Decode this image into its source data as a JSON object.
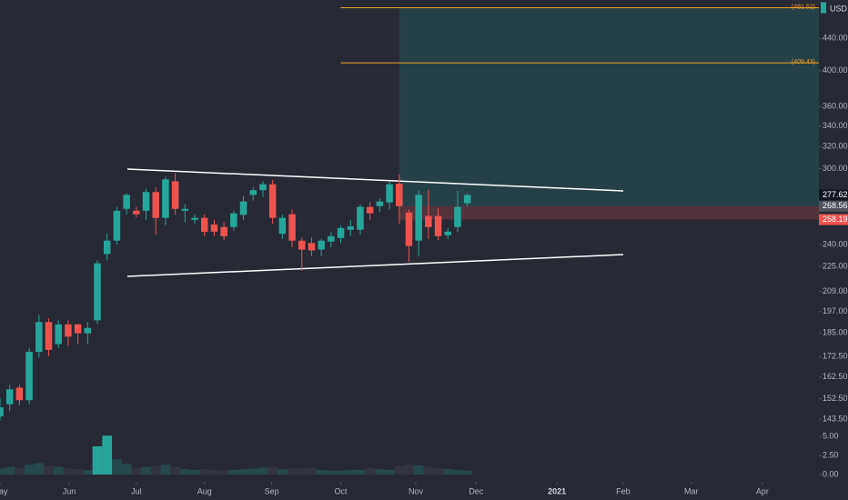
{
  "chart_data": {
    "type": "candlestick",
    "currency": "USD",
    "x": [
      0,
      1,
      2,
      3,
      4,
      5,
      6,
      7,
      8,
      9,
      10,
      11,
      12,
      13,
      14,
      15,
      16,
      17,
      18,
      19,
      20,
      21,
      22,
      23,
      24,
      25,
      26,
      27,
      28,
      29,
      30,
      31,
      32,
      33,
      34,
      35,
      36,
      37,
      38,
      39,
      40,
      41,
      42,
      43,
      44,
      45,
      46,
      47,
      48
    ],
    "open": [
      144.7,
      150,
      157.5,
      151.8,
      175,
      191,
      179,
      189.7,
      189.7,
      184.8,
      192,
      233.3,
      242.7,
      266.5,
      265,
      265,
      280,
      259.5,
      289,
      265,
      258,
      259.5,
      254.5,
      252.6,
      252.6,
      261.8,
      277.6,
      281.5,
      286.5,
      247.6,
      262.3,
      242.7,
      241,
      236.4,
      242,
      244.6,
      250.6,
      250.6,
      268,
      268.6,
      271.6,
      287,
      263.7,
      242.7,
      261,
      261,
      246.6,
      252.6,
      270.9
    ],
    "high": [
      152.6,
      158.7,
      159,
      177,
      195,
      193,
      192,
      192,
      190,
      191,
      229,
      248,
      268,
      279,
      268,
      283,
      284,
      293,
      296,
      270,
      262,
      262,
      258,
      256,
      265,
      277,
      284,
      289,
      290,
      262,
      266,
      245,
      245,
      244,
      249,
      254,
      258,
      270,
      272,
      275,
      289,
      295,
      266,
      281,
      282,
      267,
      252,
      281,
      279
    ],
    "low": [
      143,
      147,
      149.5,
      150,
      172,
      173,
      177,
      178,
      179,
      179,
      190,
      229,
      240,
      262,
      260,
      258,
      247,
      254,
      262,
      256,
      255,
      246,
      246,
      243,
      250,
      258,
      273,
      276,
      255,
      244,
      238,
      222,
      232,
      232,
      238,
      241,
      246,
      247,
      258,
      264,
      266,
      255,
      228,
      232,
      244,
      243,
      244,
      249,
      268
    ],
    "close": [
      148.6,
      156.7,
      151.8,
      175,
      191,
      176,
      189.7,
      183,
      184.8,
      187.7,
      227,
      242.7,
      265,
      277.6,
      262.3,
      280,
      259.5,
      290.6,
      266.5,
      266.5,
      259.5,
      249,
      249.2,
      245.9,
      263,
      272.3,
      281.5,
      286.5,
      259.5,
      259.5,
      242.7,
      236.4,
      235.8,
      242.7,
      245.9,
      251.9,
      253,
      268,
      263,
      272.3,
      286.5,
      268.6,
      238.9,
      277.6,
      252.6,
      245.9,
      249.2,
      268,
      277.6
    ],
    "volume": [
      0.8,
      1.0,
      0.9,
      1.3,
      1.5,
      1.2,
      1.0,
      0.8,
      0.7,
      0.6,
      3.7,
      5.1,
      2.0,
      1.4,
      0.9,
      1.0,
      1.1,
      1.3,
      1.0,
      0.7,
      0.6,
      0.7,
      0.6,
      0.5,
      0.6,
      0.7,
      0.8,
      0.9,
      1.0,
      0.7,
      0.8,
      0.8,
      0.9,
      0.6,
      0.5,
      0.5,
      0.6,
      0.6,
      0.9,
      0.7,
      0.6,
      1.1,
      1.3,
      1.2,
      1.0,
      0.8,
      0.7,
      0.6,
      0.5
    ],
    "up_color": "#26a69a",
    "down_color": "#ef5350",
    "log_scale": true,
    "xlim": [
      0,
      84.1
    ],
    "xticks": [
      {
        "value": 0,
        "label": "May"
      },
      {
        "value": 7.1,
        "label": "Jun"
      },
      {
        "value": 14,
        "label": "Jul"
      },
      {
        "value": 21,
        "label": "Aug"
      },
      {
        "value": 27.9,
        "label": "Sep"
      },
      {
        "value": 35,
        "label": "Oct"
      },
      {
        "value": 42.7,
        "label": "Nov"
      },
      {
        "value": 48.9,
        "label": "Dec"
      },
      {
        "value": 57.2,
        "label": "2021"
      },
      {
        "value": 64,
        "label": "Feb"
      },
      {
        "value": 71,
        "label": "Mar"
      },
      {
        "value": 78.3,
        "label": "Apr"
      }
    ],
    "ylim": [
      138.3,
      492.6
    ],
    "yticks": [
      {
        "value": 440,
        "label": "440.00"
      },
      {
        "value": 400,
        "label": "400.00"
      },
      {
        "value": 360,
        "label": "360.00"
      },
      {
        "value": 340,
        "label": "340.00"
      },
      {
        "value": 320,
        "label": "320.00"
      },
      {
        "value": 300,
        "label": "300.00"
      },
      {
        "value": 240,
        "label": "240.00"
      },
      {
        "value": 225,
        "label": "225.00"
      },
      {
        "value": 209,
        "label": "209.00"
      },
      {
        "value": 197,
        "label": "197.00"
      },
      {
        "value": 185,
        "label": "185.00"
      },
      {
        "value": 172.5,
        "label": "172.50"
      },
      {
        "value": 162.5,
        "label": "162.50"
      },
      {
        "value": 152.5,
        "label": "152.50"
      },
      {
        "value": 143.5,
        "label": "143.50"
      }
    ],
    "y2lim": [
      0,
      6.2
    ],
    "y2ticks": [
      {
        "value": 5,
        "label": "5.00"
      },
      {
        "value": 2.5,
        "label": "2.50"
      },
      {
        "value": 0,
        "label": "0.00"
      }
    ],
    "levels": [
      {
        "value": 481.52,
        "label": "(481.52)",
        "start": 35
      },
      {
        "value": 409.43,
        "label": "(409.43)",
        "start": 35
      }
    ],
    "position": {
      "start": 41,
      "target": 481.52,
      "entry": 268.56,
      "stop": 258.19
    },
    "price_labels": [
      277.62,
      268.56,
      258.19
    ]
  }
}
